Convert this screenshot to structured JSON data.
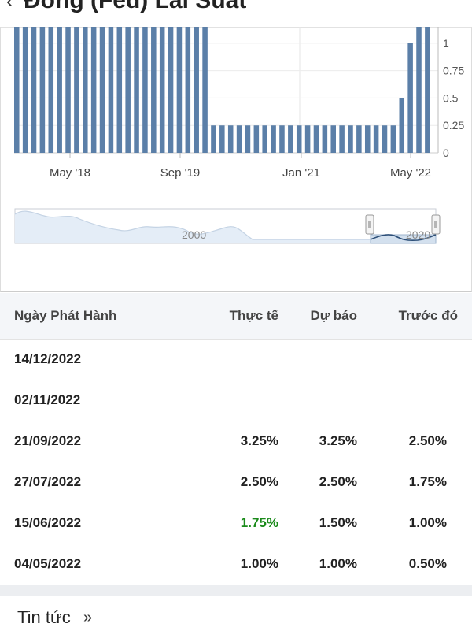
{
  "header": {
    "title": "Đồng (Fed) Lãi Suất"
  },
  "chart": {
    "x_ticks": [
      "May '18",
      "Sep '19",
      "Jan '21",
      "May '22"
    ],
    "y_ticks": [
      "0",
      "0.25",
      "0.5",
      "0.75",
      "1"
    ],
    "navigator_labels": [
      "2000",
      "2020"
    ],
    "bar_color": "#5b7fa8"
  },
  "chart_data": {
    "type": "bar",
    "ylim": [
      0,
      1.15
    ],
    "y_ticks": [
      0,
      0.25,
      0.5,
      0.75,
      1
    ],
    "x_ticks": [
      "May '18",
      "Sep '19",
      "Jan '21",
      "May '22"
    ],
    "values": [
      1.15,
      1.15,
      1.15,
      1.15,
      1.15,
      1.15,
      1.15,
      1.15,
      1.15,
      1.15,
      1.15,
      1.15,
      1.15,
      1.15,
      1.15,
      1.15,
      1.15,
      1.15,
      1.15,
      1.15,
      1.15,
      1.15,
      1.15,
      0.25,
      0.25,
      0.25,
      0.25,
      0.25,
      0.25,
      0.25,
      0.25,
      0.25,
      0.25,
      0.25,
      0.25,
      0.25,
      0.25,
      0.25,
      0.25,
      0.25,
      0.25,
      0.25,
      0.25,
      0.25,
      0.25,
      0.5,
      1.0,
      1.15,
      1.15
    ]
  },
  "table": {
    "headers": [
      "Ngày Phát Hành",
      "Thực tế",
      "Dự báo",
      "Trước đó"
    ],
    "rows": [
      {
        "date": "14/12/2022",
        "actual": "",
        "forecast": "",
        "previous": ""
      },
      {
        "date": "02/11/2022",
        "actual": "",
        "forecast": "",
        "previous": ""
      },
      {
        "date": "21/09/2022",
        "actual": "3.25%",
        "forecast": "3.25%",
        "previous": "2.50%"
      },
      {
        "date": "27/07/2022",
        "actual": "2.50%",
        "forecast": "2.50%",
        "previous": "1.75%"
      },
      {
        "date": "15/06/2022",
        "actual": "1.75%",
        "forecast": "1.50%",
        "previous": "1.00%"
      },
      {
        "date": "04/05/2022",
        "actual": "1.00%",
        "forecast": "1.00%",
        "previous": "0.50%"
      }
    ],
    "actual_better_color": "#1a8a1a"
  },
  "news": {
    "label": "Tin tức",
    "chevron": "»"
  }
}
